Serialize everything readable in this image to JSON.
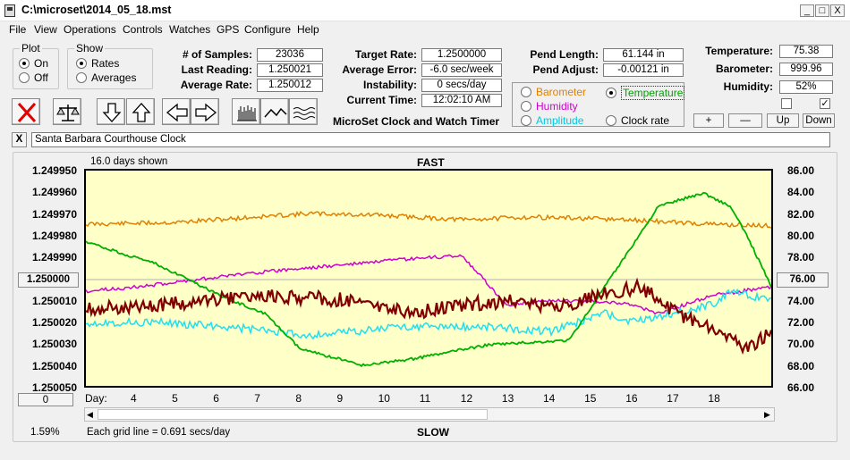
{
  "window": {
    "title": "C:\\microset\\2014_05_18.mst",
    "buttons": [
      "_",
      "□",
      "X"
    ]
  },
  "menu": [
    "File",
    "View",
    "Operations",
    "Controls",
    "Watches",
    "GPS",
    "Configure",
    "Help"
  ],
  "plot_group": {
    "title": "Plot",
    "options": [
      "On",
      "Off"
    ],
    "selected": "On"
  },
  "show_group": {
    "title": "Show",
    "options": [
      "Rates",
      "Averages"
    ],
    "selected": "Rates"
  },
  "stats": {
    "samples_label": "# of Samples:",
    "samples": "23036",
    "last_reading_label": "Last Reading:",
    "last_reading": "1.250021",
    "average_rate_label": "Average Rate:",
    "average_rate": "1.250012",
    "target_rate_label": "Target Rate:",
    "target_rate": "1.2500000",
    "average_error_label": "Average Error:",
    "average_error": "-6.0 sec/week",
    "instability_label": "Instability:",
    "instability": "0 secs/day",
    "current_time_label": "Current Time:",
    "current_time": "12:02:10 AM",
    "app_caption": "MicroSet Clock and Watch Timer",
    "pend_length_label": "Pend Length:",
    "pend_length": "61.144 in",
    "pend_adjust_label": "Pend Adjust:",
    "pend_adjust": "-0.00121 in",
    "temperature_label": "Temperature:",
    "temperature": "75.38",
    "barometer_label": "Barometer:",
    "barometer": "999.96",
    "humidity_label": "Humidity:",
    "humidity": "52%"
  },
  "sensor_options": [
    {
      "label": "Barometer",
      "color": "#e08000",
      "selected": false
    },
    {
      "label": "Temperature",
      "color": "#00a000",
      "selected": true
    },
    {
      "label": "Humidity",
      "color": "#cc00cc",
      "selected": false
    },
    {
      "label": "Amplitude",
      "color": "#00c8e0",
      "selected": false
    },
    {
      "label": "Clock rate",
      "color": "#000000",
      "selected": false
    }
  ],
  "scale_buttons": [
    "+",
    "—",
    "Up",
    "Down"
  ],
  "checkboxes": [
    false,
    true
  ],
  "clock_name": "Santa Barbara Courthouse Clock",
  "clear_button": "X",
  "graph": {
    "days_shown": "16.0 days shown",
    "top_label": "FAST",
    "bottom_label": "SLOW",
    "left_ticks": [
      "1.249950",
      "1.249960",
      "1.249970",
      "1.249980",
      "1.249990",
      "1.250000",
      "1.250010",
      "1.250020",
      "1.250030",
      "1.250040",
      "1.250050"
    ],
    "right_ticks": [
      "86.00",
      "84.00",
      "82.00",
      "80.00",
      "78.00",
      "76.00",
      "74.00",
      "72.00",
      "70.00",
      "68.00",
      "66.00"
    ],
    "x_label": "Day:",
    "x_ticks": [
      "4",
      "5",
      "6",
      "7",
      "8",
      "9",
      "10",
      "11",
      "12",
      "13",
      "14",
      "15",
      "16",
      "17",
      "18"
    ],
    "left_reference_button": "1.250000",
    "right_reference_button": "76.00",
    "offset_button": "0",
    "percent": "1.59%",
    "grid_note": "Each grid line = 0.691 secs/day"
  },
  "colors": {
    "clock_rate": "#800000",
    "temperature": "#00b000",
    "barometer": "#e08000",
    "humidity": "#d000d0",
    "amplitude": "#20e0f0",
    "plot_bg": "#ffffc8"
  }
}
